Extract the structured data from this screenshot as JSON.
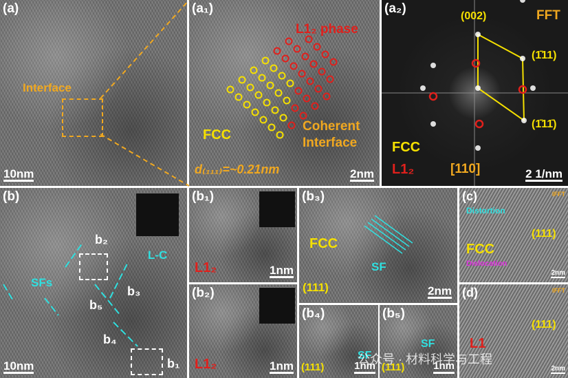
{
  "panels": [
    {
      "label": "(a)",
      "scale_bar": "10nm",
      "annotations": [
        "Interface"
      ]
    },
    {
      "label": "(a₁)",
      "scale_bar": "2nm",
      "annotations": [
        "L1₂ phase",
        "FCC",
        "Coherent Interface",
        "d₍₁₁₁₎=~0.21nm"
      ]
    },
    {
      "label": "(a₂)",
      "scale_bar": "2 1/nm",
      "annotations": [
        "(002)",
        "FFT",
        "(1̄11)",
        "(1̄11̄)",
        "FCC",
        "L1₂",
        "[110]"
      ]
    },
    {
      "label": "(b)",
      "scale_bar": "10nm",
      "annotations": [
        "b₂",
        "L-C",
        "SFs",
        "b₃",
        "b₅",
        "b₄",
        "b₁"
      ]
    },
    {
      "label": "(b₁)",
      "scale_bar": "1nm",
      "annotations": [
        "L1₂"
      ]
    },
    {
      "label": "(b₂)",
      "scale_bar": "1nm",
      "annotations": [
        "L1₂"
      ]
    },
    {
      "label": "(b₃)",
      "scale_bar": "2nm",
      "annotations": [
        "FCC",
        "SF",
        "(111)"
      ]
    },
    {
      "label": "(b₄)",
      "scale_bar": "1nm",
      "annotations": [
        "SF",
        "(111)"
      ]
    },
    {
      "label": "(b₅)",
      "scale_bar": "1nm",
      "annotations": [
        "SF",
        "(111)"
      ]
    },
    {
      "label": "(c)",
      "scale_bar": "2nm",
      "annotations": [
        "IFFT",
        "Distortion",
        "(111)",
        "FCC",
        "Dislocation"
      ]
    },
    {
      "label": "(d)",
      "scale_bar": "2nm",
      "annotations": [
        "IFFT",
        "(111)",
        "L1"
      ]
    }
  ],
  "watermark": "公众号 · 材料科学与工程"
}
